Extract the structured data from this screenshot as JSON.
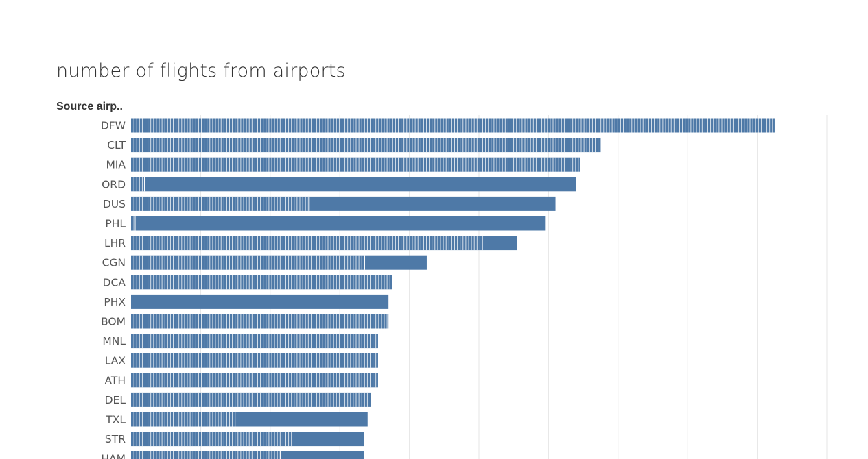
{
  "title": "number of flights from airports",
  "chart_data": {
    "type": "bar",
    "orientation": "horizontal",
    "stacked": true,
    "title": "number of flights from airports",
    "ylabel": "Source airp..",
    "xlabel": "",
    "categories": [
      "DFW",
      "CLT",
      "MIA",
      "ORD",
      "DUS",
      "PHL",
      "LHR",
      "CGN",
      "DCA",
      "PHX",
      "BOM",
      "MNL",
      "LAX",
      "ATH",
      "DEL",
      "TXL",
      "STR",
      "HAM"
    ],
    "values": [
      1850,
      1350,
      1290,
      1280,
      1220,
      1190,
      1110,
      850,
      750,
      740,
      740,
      710,
      710,
      710,
      690,
      680,
      670,
      670
    ],
    "segment_pattern": [
      "striped",
      "striped",
      "striped",
      "mixed",
      "mixed",
      "mixed",
      "mixed",
      "mixed",
      "striped",
      "solid",
      "striped",
      "striped",
      "striped",
      "striped",
      "striped",
      "mixed",
      "mixed",
      "mixed"
    ],
    "xlim": [
      0,
      2000
    ],
    "grid": true,
    "bar_color": "#4e79a7",
    "gridline_color": "#e6e6e6"
  }
}
